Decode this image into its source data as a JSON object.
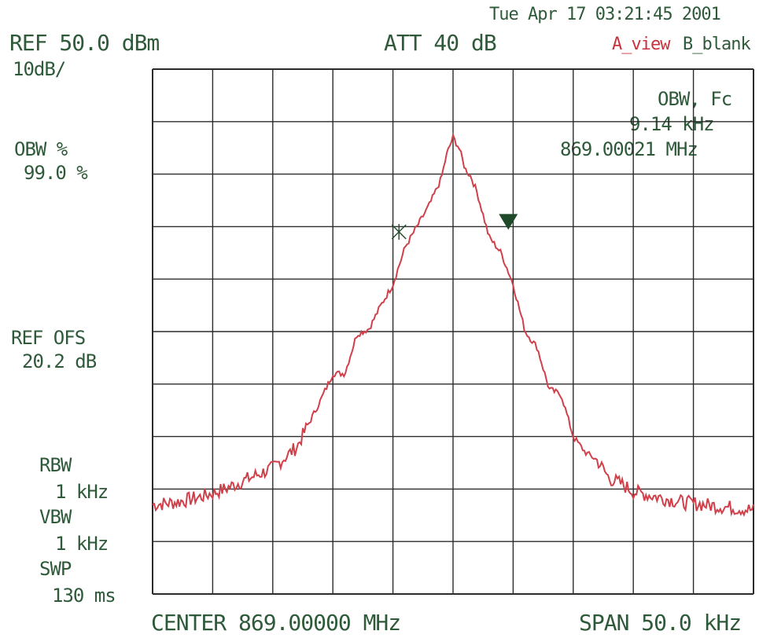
{
  "header": {
    "timestamp": "Tue Apr 17 03:21:45 2001",
    "ref_level": "REF 50.0 dBm",
    "scale": "10dB/",
    "attenuation": "ATT 40 dB",
    "trace_a": "A_view",
    "trace_b": "B_blank"
  },
  "left_panel": {
    "obw_label": "OBW %",
    "obw_value": "99.0 %",
    "ref_ofs_label": "REF OFS",
    "ref_ofs_value": "20.2 dB",
    "rbw_label": "RBW",
    "rbw_value": "1 kHz",
    "vbw_label": "VBW",
    "vbw_value": "1 kHz",
    "swp_label": "SWP",
    "swp_value": "130 ms"
  },
  "readout": {
    "label": "OBW, Fc",
    "bandwidth": "9.14 kHz",
    "center_freq": "869.00021 MHz"
  },
  "footer": {
    "center": "CENTER 869.00000 MHz",
    "span": "SPAN 50.0 kHz"
  },
  "colors": {
    "trace": "#d0404a",
    "grid": "#2b2b2b",
    "text": "#2f5a3a",
    "marker": "#1f4a2a"
  },
  "chart_data": {
    "type": "line",
    "title": "",
    "xlabel": "",
    "ylabel": "",
    "x_unit": "kHz offset from center",
    "y_unit": "dBm",
    "xlim": [
      -25,
      25
    ],
    "ylim": [
      -50,
      50
    ],
    "grid": true,
    "series": [
      {
        "values_x": [
          -25,
          -23,
          -21,
          -19,
          -17,
          -15,
          -13,
          -11,
          -10,
          -9,
          -8,
          -7,
          -6,
          -5,
          -4,
          -3,
          -2,
          -1,
          -0.5,
          0,
          0.5,
          1,
          1.5,
          2,
          3,
          4,
          5,
          6,
          7,
          8,
          9,
          10,
          11,
          12,
          13,
          14,
          15,
          17,
          19,
          21,
          23,
          25
        ],
        "values_y": [
          -33,
          -32.5,
          -31.5,
          -30,
          -28,
          -26,
          -22,
          -13,
          -8,
          -8,
          -0.5,
          0.5,
          5,
          9,
          16,
          20,
          24,
          29,
          34,
          37,
          35,
          31,
          29.5,
          26.5,
          18,
          15,
          9,
          0,
          -3,
          -11,
          -12,
          -20,
          -23,
          -24.5,
          -28,
          -29,
          -30.5,
          -31.5,
          -32.5,
          -33,
          -33.5,
          -34
        ]
      }
    ],
    "markers": [
      {
        "type": "obw-lower",
        "x": -4.5,
        "y": 19
      },
      {
        "type": "obw-upper",
        "x": 4.6,
        "y": 20
      }
    ]
  }
}
